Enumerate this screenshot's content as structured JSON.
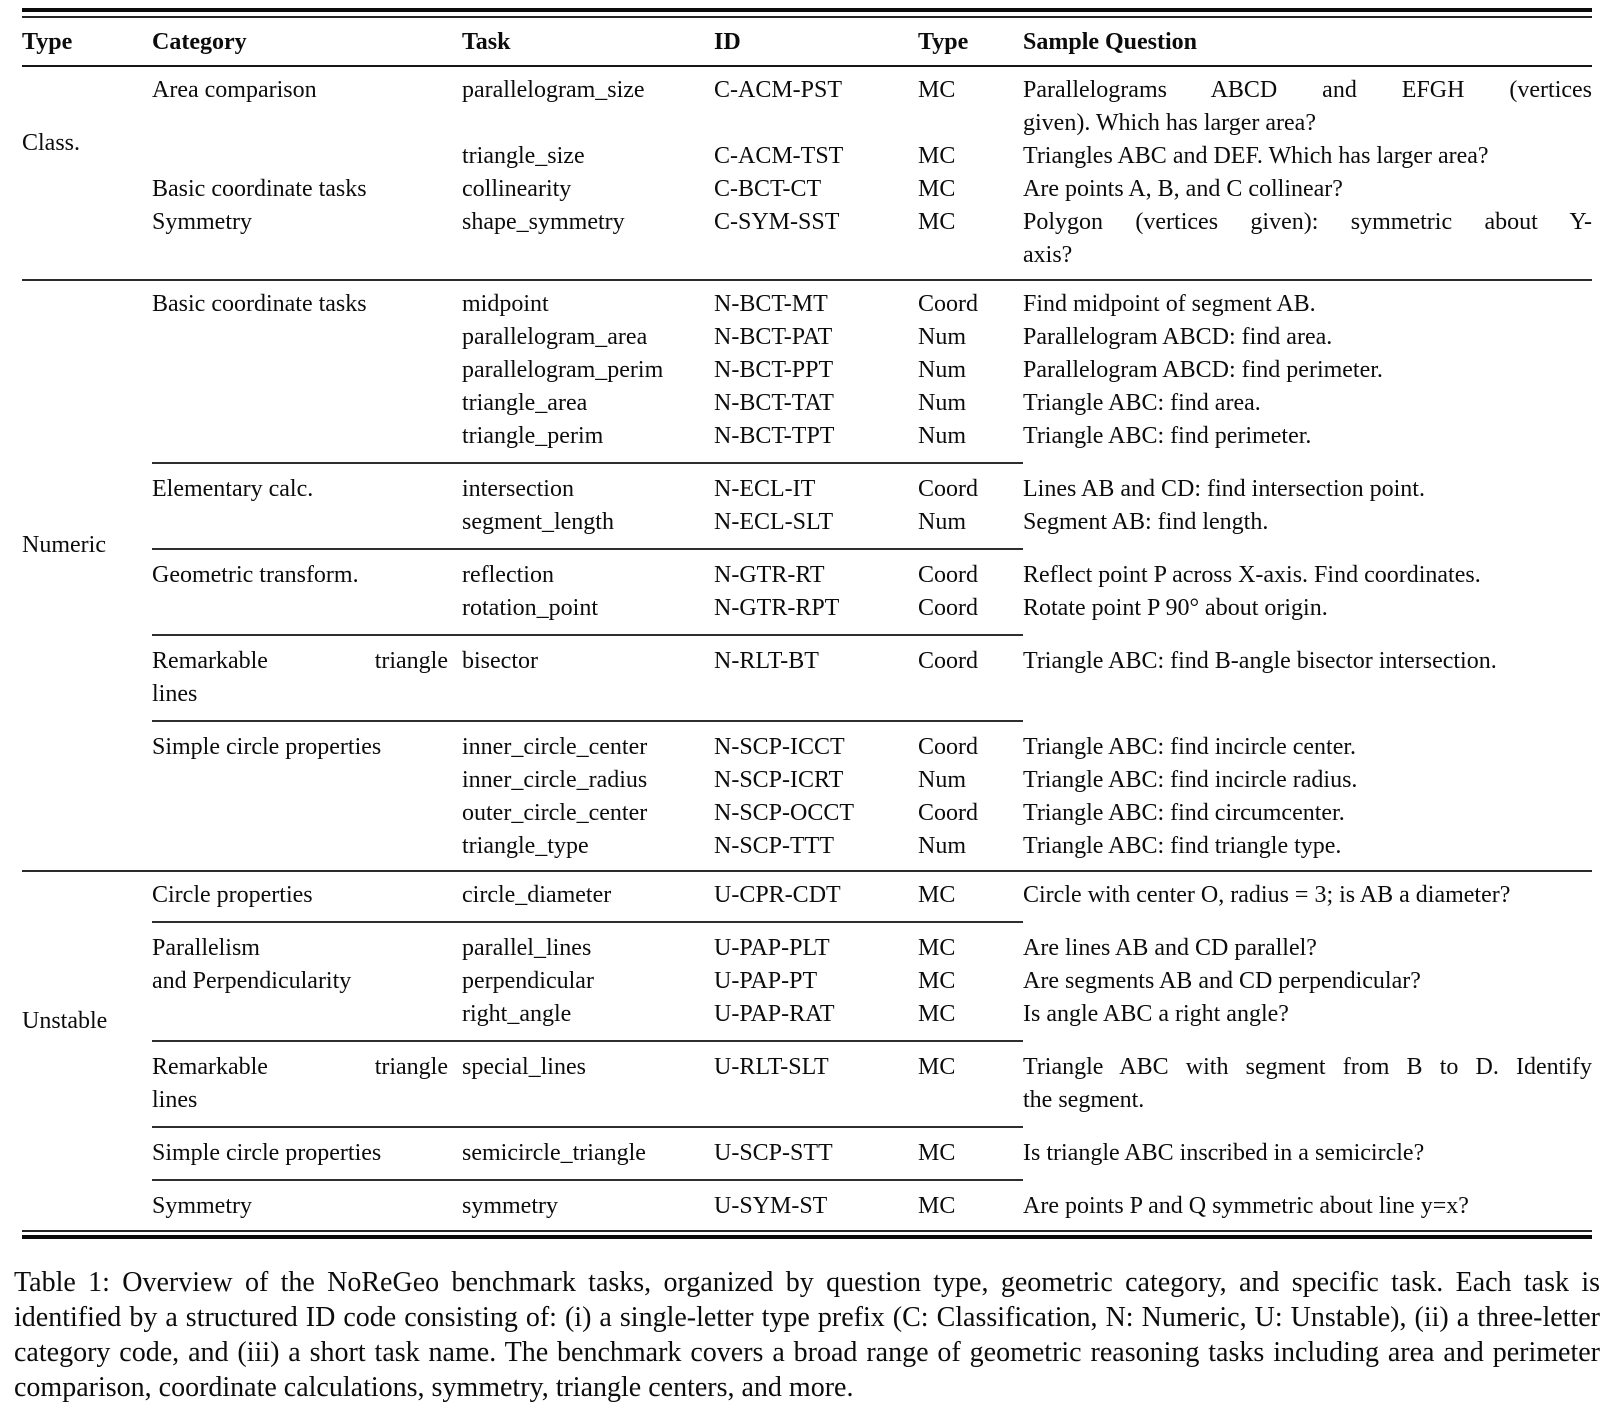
{
  "table": {
    "headers": {
      "type": "Type",
      "category": "Category",
      "task": "Task",
      "id": "ID",
      "qtype": "Type",
      "question": "Sample Question"
    },
    "sections": [
      {
        "type_label": "Class.",
        "groups": [
          {
            "category_lines": [
              "Area comparison"
            ],
            "rows": [
              {
                "task": "parallelogram_size",
                "id": "C-ACM-PST",
                "qtype": "MC",
                "question_lines": [
                  "Parallelograms ABCD and EFGH (vertices",
                  "given). Which has larger area?"
                ]
              },
              {
                "task": "triangle_size",
                "id": "C-ACM-TST",
                "qtype": "MC",
                "question": "Triangles ABC and DEF. Which has larger area?"
              }
            ]
          },
          {
            "category_lines": [
              "Basic coordinate tasks"
            ],
            "rows": [
              {
                "task": "collinearity",
                "id": "C-BCT-CT",
                "qtype": "MC",
                "question": "Are points A, B, and C collinear?"
              }
            ]
          },
          {
            "category_lines": [
              "Symmetry"
            ],
            "rows": [
              {
                "task": "shape_symmetry",
                "id": "C-SYM-SST",
                "qtype": "MC",
                "question_lines": [
                  "Polygon (vertices given): symmetric about Y-",
                  "axis?"
                ]
              }
            ]
          }
        ]
      },
      {
        "type_label": "Numeric",
        "groups": [
          {
            "category_lines": [
              "Basic coordinate tasks"
            ],
            "rows": [
              {
                "task": "midpoint",
                "id": "N-BCT-MT",
                "qtype": "Coord",
                "question": "Find midpoint of segment AB."
              },
              {
                "task": "parallelogram_area",
                "id": "N-BCT-PAT",
                "qtype": "Num",
                "question": "Parallelogram ABCD: find area."
              },
              {
                "task": "parallelogram_perim",
                "id": "N-BCT-PPT",
                "qtype": "Num",
                "question": "Parallelogram ABCD: find perimeter."
              },
              {
                "task": "triangle_area",
                "id": "N-BCT-TAT",
                "qtype": "Num",
                "question": "Triangle ABC: find area."
              },
              {
                "task": "triangle_perim",
                "id": "N-BCT-TPT",
                "qtype": "Num",
                "question": "Triangle ABC: find perimeter."
              }
            ]
          },
          {
            "category_lines": [
              "Elementary calc."
            ],
            "rows": [
              {
                "task": "intersection",
                "id": "N-ECL-IT",
                "qtype": "Coord",
                "question": "Lines AB and CD: find intersection point."
              },
              {
                "task": "segment_length",
                "id": "N-ECL-SLT",
                "qtype": "Num",
                "question": "Segment AB: find length."
              }
            ]
          },
          {
            "category_lines": [
              "Geometric transform."
            ],
            "rows": [
              {
                "task": "reflection",
                "id": "N-GTR-RT",
                "qtype": "Coord",
                "question": "Reflect point P across X-axis. Find coordinates."
              },
              {
                "task": "rotation_point",
                "id": "N-GTR-RPT",
                "qtype": "Coord",
                "question": "Rotate point P 90° about origin."
              }
            ]
          },
          {
            "category_lines": [
              "Remarkable triangle",
              "lines"
            ],
            "rows": [
              {
                "task": "bisector",
                "id": "N-RLT-BT",
                "qtype": "Coord",
                "question": "Triangle ABC: find B-angle bisector intersection."
              }
            ]
          },
          {
            "category_lines": [
              "Simple circle properties"
            ],
            "rows": [
              {
                "task": "inner_circle_center",
                "id": "N-SCP-ICCT",
                "qtype": "Coord",
                "question": "Triangle ABC: find incircle center."
              },
              {
                "task": "inner_circle_radius",
                "id": "N-SCP-ICRT",
                "qtype": "Num",
                "question": "Triangle ABC: find incircle radius."
              },
              {
                "task": "outer_circle_center",
                "id": "N-SCP-OCCT",
                "qtype": "Coord",
                "question": "Triangle ABC: find circumcenter."
              },
              {
                "task": "triangle_type",
                "id": "N-SCP-TTT",
                "qtype": "Num",
                "question": "Triangle ABC: find triangle type."
              }
            ]
          }
        ]
      },
      {
        "type_label": "Unstable",
        "groups": [
          {
            "category_lines": [
              "Circle properties"
            ],
            "rows": [
              {
                "task": "circle_diameter",
                "id": "U-CPR-CDT",
                "qtype": "MC",
                "question": "Circle with center O, radius = 3; is AB a diameter?"
              }
            ]
          },
          {
            "category_lines": [
              "Parallelism",
              "and Perpendicularity"
            ],
            "rows": [
              {
                "task": "parallel_lines",
                "id": "U-PAP-PLT",
                "qtype": "MC",
                "question": "Are lines AB and CD parallel?"
              },
              {
                "task": "perpendicular",
                "id": "U-PAP-PT",
                "qtype": "MC",
                "question": "Are segments AB and CD perpendicular?"
              },
              {
                "task": "right_angle",
                "id": "U-PAP-RAT",
                "qtype": "MC",
                "question": "Is angle ABC a right angle?"
              }
            ]
          },
          {
            "category_lines": [
              "Remarkable triangle",
              "lines"
            ],
            "rows": [
              {
                "task": "special_lines",
                "id": "U-RLT-SLT",
                "qtype": "MC",
                "question_lines": [
                  "Triangle ABC with segment from B to D. Identify",
                  "the segment."
                ]
              }
            ]
          },
          {
            "category_lines": [
              "Simple circle properties"
            ],
            "rows": [
              {
                "task": "semicircle_triangle",
                "id": "U-SCP-STT",
                "qtype": "MC",
                "question": "Is triangle ABC inscribed in a semicircle?"
              }
            ]
          },
          {
            "category_lines": [
              "Symmetry"
            ],
            "rows": [
              {
                "task": "symmetry",
                "id": "U-SYM-ST",
                "qtype": "MC",
                "question": "Are points P and Q symmetric about line y=x?"
              }
            ]
          }
        ]
      }
    ]
  },
  "caption": "Table 1: Overview of the NoReGeo benchmark tasks, organized by question type, geometric category, and specific task. Each task is identified by a structured ID code consisting of: (i) a single-letter type prefix (C: Classification, N: Numeric, U: Unstable), (ii) a three-letter category code, and (iii) a short task name. The benchmark covers a broad range of geometric reasoning tasks including area and perimeter comparison, coordinate calculations, symmetry, triangle centers, and more."
}
